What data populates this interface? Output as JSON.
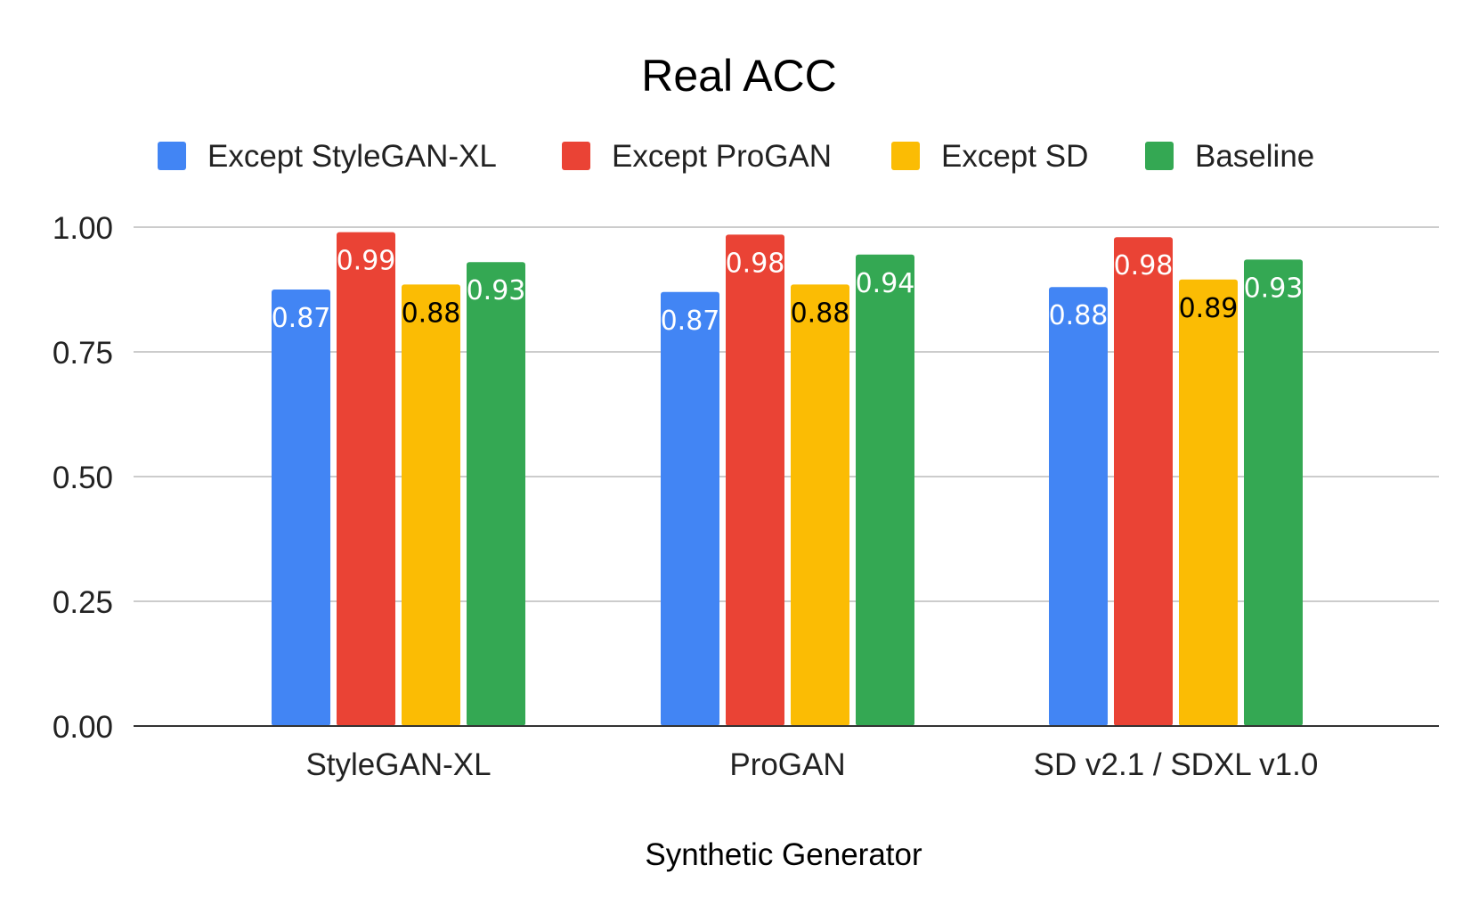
{
  "chart_data": {
    "type": "bar",
    "title": "Real ACC",
    "xlabel": "Synthetic Generator",
    "ylabel": "",
    "categories": [
      "StyleGAN-XL",
      "ProGAN",
      "SD v2.1 / SDXL v1.0"
    ],
    "ylim": [
      0,
      1
    ],
    "yticks": [
      "0.00",
      "0.25",
      "0.50",
      "0.75",
      "1.00"
    ],
    "grid": true,
    "legend_position": "top",
    "series": [
      {
        "name": "Except StyleGAN-XL",
        "color": "#4285F4",
        "label_color": "#FFFFFF",
        "values": [
          0.875,
          0.87,
          0.88
        ],
        "labels": [
          "0.87",
          "0.87",
          "0.88"
        ]
      },
      {
        "name": "Except ProGAN",
        "color": "#EA4335",
        "label_color": "#FFFFFF",
        "values": [
          0.99,
          0.985,
          0.98
        ],
        "labels": [
          "0.99",
          "0.98",
          "0.98"
        ]
      },
      {
        "name": "Except SD",
        "color": "#FBBC04",
        "label_color": "#000000",
        "values": [
          0.885,
          0.885,
          0.895
        ],
        "labels": [
          "0.88",
          "0.88",
          "0.89"
        ]
      },
      {
        "name": "Baseline",
        "color": "#34A853",
        "label_color": "#FFFFFF",
        "values": [
          0.93,
          0.945,
          0.935
        ],
        "labels": [
          "0.93",
          "0.94",
          "0.93"
        ]
      }
    ]
  }
}
